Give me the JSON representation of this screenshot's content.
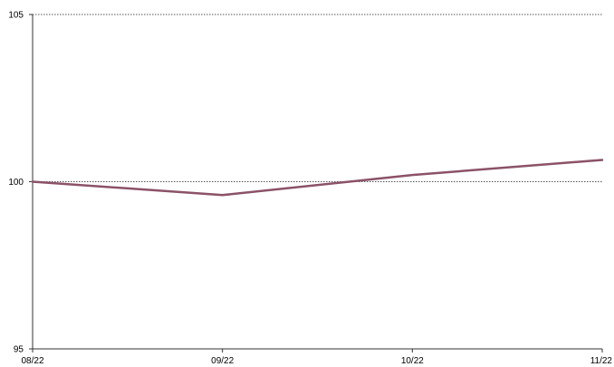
{
  "chart_data": {
    "type": "line",
    "title": "",
    "xlabel": "",
    "ylabel": "",
    "categories": [
      "08/22",
      "09/22",
      "10/22",
      "11/22"
    ],
    "series": [
      {
        "values": [
          100.0,
          99.6,
          100.2,
          100.65
        ],
        "color": "#8b5268"
      }
    ],
    "ylim": [
      95,
      105
    ],
    "yticks": [
      95,
      100,
      105
    ],
    "grid": {
      "horizontal": true,
      "style": "dotted",
      "at": [
        100,
        105
      ]
    },
    "legend": "none"
  }
}
